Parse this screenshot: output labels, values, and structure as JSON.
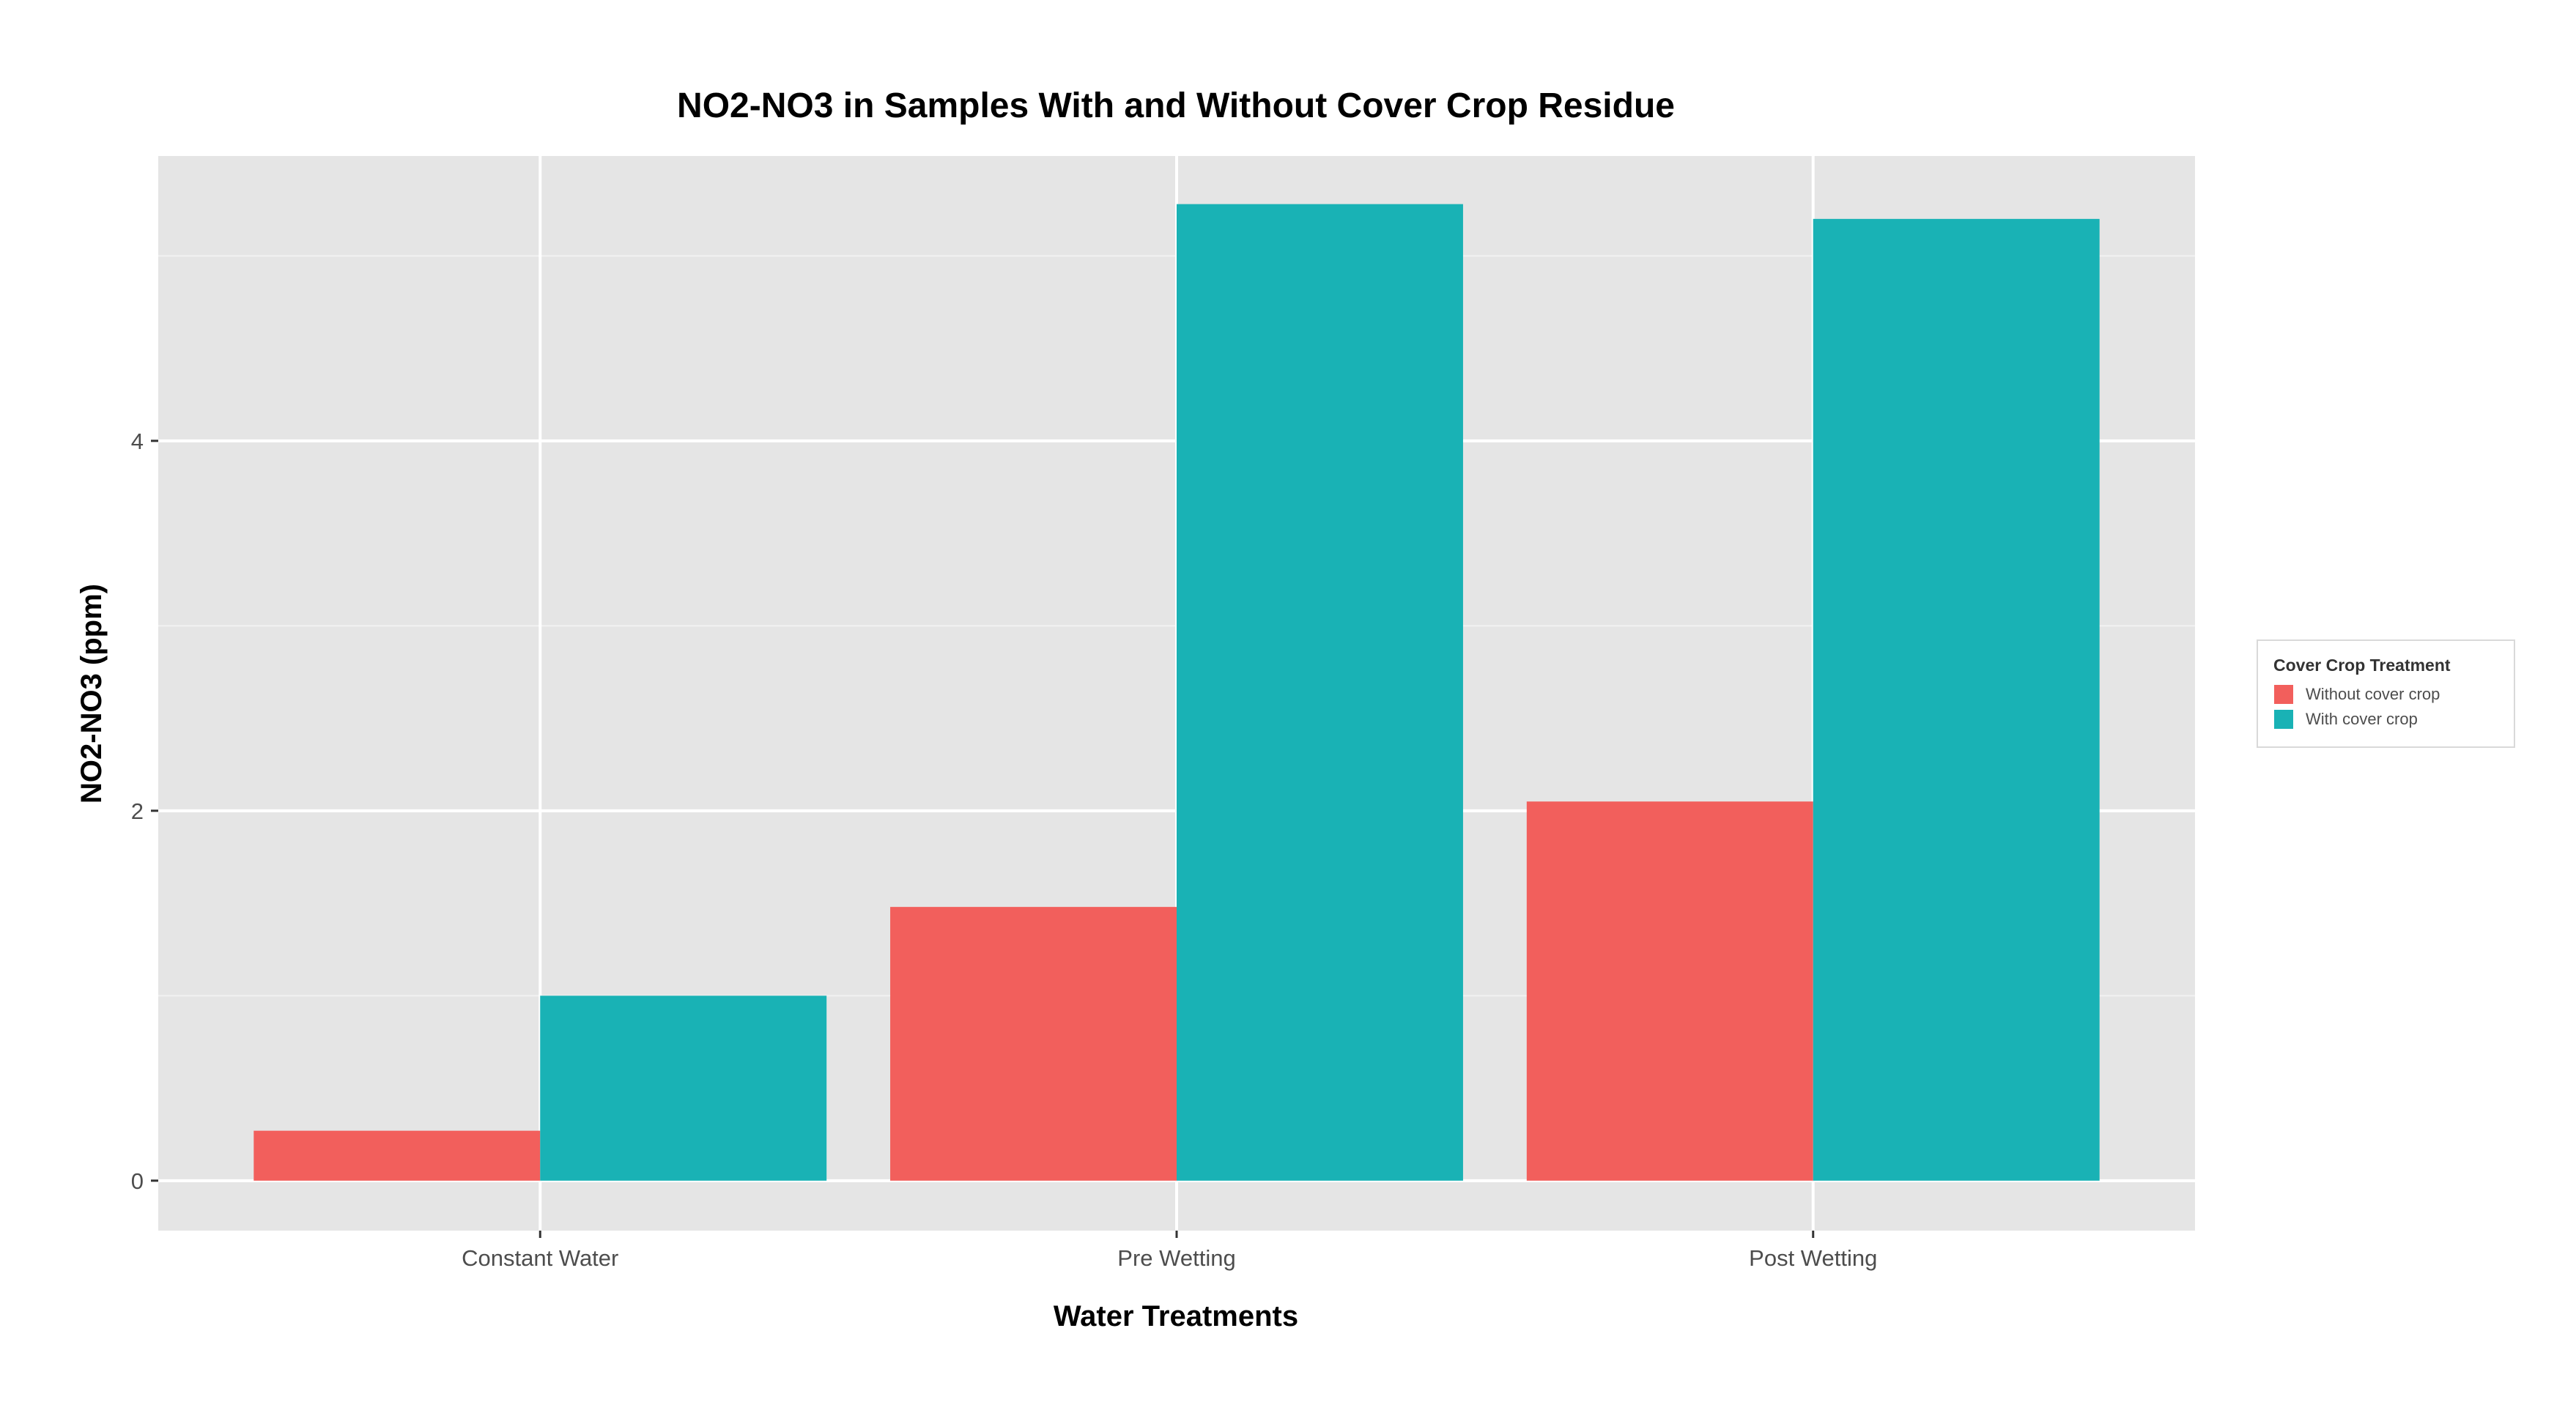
{
  "chart_data": {
    "type": "bar",
    "title": "NO2-NO3 in Samples With and Without Cover Crop Residue",
    "xlabel": "Water Treatments",
    "ylabel": "NO2-NO3 (ppm)",
    "categories": [
      "Constant Water",
      "Pre Wetting",
      "Post Wetting"
    ],
    "series": [
      {
        "name": "Without cover crop",
        "values": [
          0.27,
          1.48,
          2.05
        ],
        "color": "#F25F5C"
      },
      {
        "name": "With cover crop",
        "values": [
          1.0,
          5.28,
          5.2
        ],
        "color": "#19B2B5"
      }
    ],
    "ylim": [
      -0.27,
      5.54
    ],
    "yticks": [
      0,
      2,
      4
    ],
    "ytick_labels": [
      "0",
      "2",
      "4"
    ],
    "grid": true,
    "panel_color": "#E5E5E5",
    "legend": {
      "title": "Cover Crop Treatment",
      "position": "right"
    }
  }
}
